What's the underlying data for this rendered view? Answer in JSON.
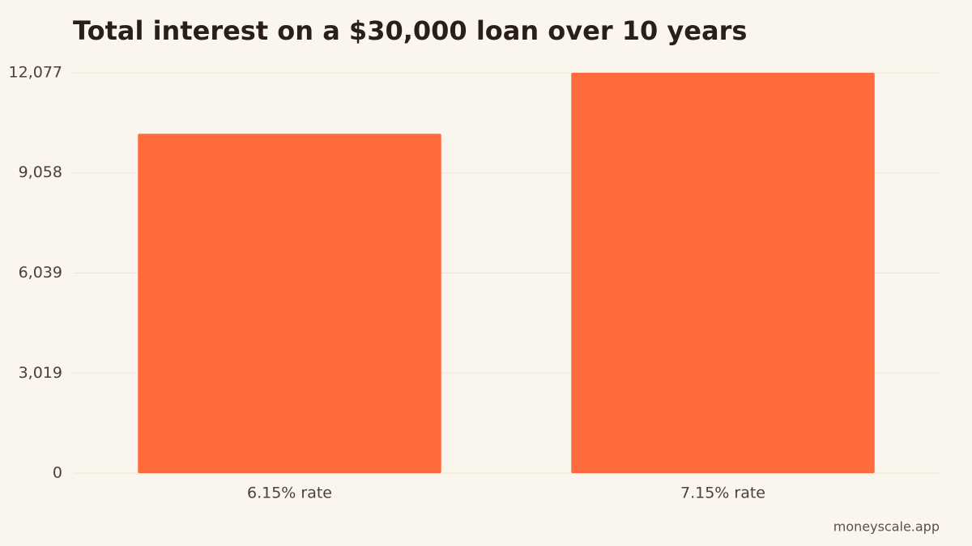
{
  "chart_data": {
    "type": "bar",
    "title": "Total interest on a $30,000 loan over 10 years",
    "categories": [
      "6.15% rate",
      "7.15% rate"
    ],
    "values": [
      10237,
      12077
    ],
    "color": "#ff6b3d",
    "ylim": [
      0,
      12077
    ],
    "yticks": [
      0,
      {
        "value": 3019,
        "label": "3,019"
      },
      {
        "value": 6039,
        "label": "6,039"
      },
      {
        "value": 9058,
        "label": "9,058"
      },
      {
        "value": 12077,
        "label": "12,077"
      }
    ],
    "grid": true,
    "source": "moneyscale.app"
  }
}
